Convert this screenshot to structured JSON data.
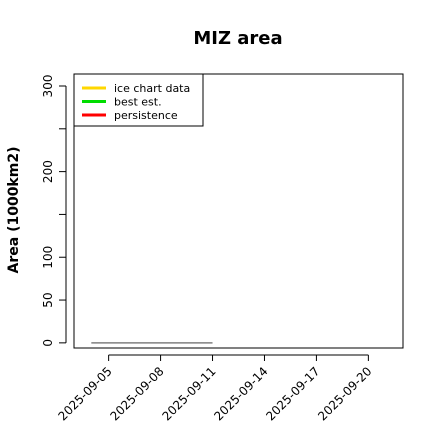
{
  "chart_data": {
    "type": "line",
    "title": "MIZ area",
    "xlabel": "",
    "ylabel": "Area (1000km2)",
    "x_ticks": [
      "2025-09-05",
      "2025-09-08",
      "2025-09-11",
      "2025-09-14",
      "2025-09-17",
      "2025-09-20"
    ],
    "x_range": [
      "2025-09-03",
      "2025-09-22"
    ],
    "y_ticks": [
      0,
      50,
      100,
      200,
      300
    ],
    "y_minor_ticks": [
      150,
      250
    ],
    "ylim": [
      -6,
      314
    ],
    "grid": false,
    "legend_position": "top-left",
    "series": [
      {
        "name": "ice chart data",
        "color": "#FFD700",
        "x": [],
        "y": []
      },
      {
        "name": "best est.",
        "color": "#00DD00",
        "x": [],
        "y": []
      },
      {
        "name": "persistence",
        "color": "#FF0000",
        "x": [],
        "y": []
      }
    ],
    "reference_line": {
      "color": "#808080",
      "x": [
        "2025-09-04",
        "2025-09-11"
      ],
      "y": [
        0,
        0
      ]
    }
  }
}
